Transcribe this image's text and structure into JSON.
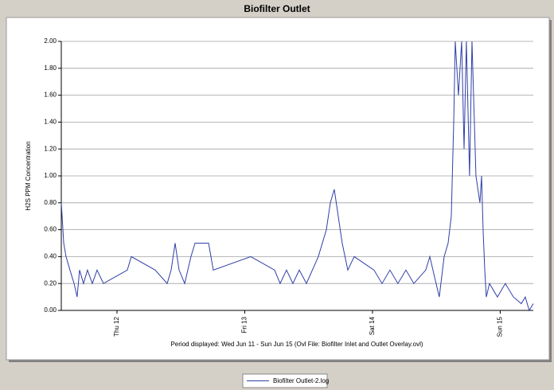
{
  "chart_data": {
    "type": "line",
    "title": "Biofilter Outlet",
    "y_label": "H2S PPM Concentration",
    "x_label": "Period displayed: Wed Jun 11 - Sun Jun 15 (Ovl File: Biofilter Inlet and Outlet Overlay.ovl)",
    "x": [
      11.564,
      11.583,
      11.601,
      11.632,
      11.664,
      11.688,
      11.707,
      11.738,
      11.769,
      11.807,
      11.844,
      11.894,
      12.081,
      12.112,
      12.299,
      12.393,
      12.424,
      12.455,
      12.486,
      12.53,
      12.579,
      12.611,
      12.717,
      12.754,
      13.047,
      13.234,
      13.277,
      13.327,
      13.377,
      13.427,
      13.483,
      13.576,
      13.639,
      13.67,
      13.701,
      13.732,
      13.763,
      13.807,
      13.857,
      14.012,
      14.075,
      14.137,
      14.199,
      14.262,
      14.324,
      14.417,
      14.449,
      14.498,
      14.523,
      14.561,
      14.592,
      14.617,
      14.636,
      14.648,
      14.673,
      14.698,
      14.717,
      14.735,
      14.76,
      14.779,
      14.81,
      14.841,
      14.854,
      14.866,
      14.879,
      14.891,
      14.916,
      14.978,
      15.04,
      15.103,
      15.165,
      15.196,
      15.227,
      15.259
    ],
    "series": [
      {
        "name": "Biofilter Outlet-2.log",
        "color": "#2f3fa8",
        "values": [
          0.8,
          0.5,
          0.4,
          0.3,
          0.2,
          0.1,
          0.3,
          0.2,
          0.3,
          0.2,
          0.3,
          0.2,
          0.3,
          0.4,
          0.3,
          0.2,
          0.3,
          0.5,
          0.3,
          0.2,
          0.4,
          0.5,
          0.5,
          0.3,
          0.4,
          0.3,
          0.2,
          0.3,
          0.2,
          0.3,
          0.2,
          0.4,
          0.6,
          0.8,
          0.9,
          0.7,
          0.5,
          0.3,
          0.4,
          0.3,
          0.2,
          0.3,
          0.2,
          0.3,
          0.2,
          0.3,
          0.4,
          0.2,
          0.1,
          0.4,
          0.5,
          0.7,
          1.4,
          2.0,
          1.6,
          2.0,
          1.2,
          2.0,
          1.0,
          2.0,
          1.0,
          0.8,
          1.0,
          0.6,
          0.3,
          0.1,
          0.2,
          0.1,
          0.2,
          0.1,
          0.05,
          0.1,
          0,
          0.05
        ]
      }
    ],
    "xlim": [
      11.564,
      15.259
    ],
    "xticks": [
      {
        "value": 12,
        "label": "Thu 12"
      },
      {
        "value": 13,
        "label": "Fri 13"
      },
      {
        "value": 14,
        "label": "Sat 14"
      },
      {
        "value": 15,
        "label": "Sun 15"
      }
    ],
    "ylim": [
      0,
      2
    ],
    "yticks": [
      {
        "value": 0,
        "label": "0.00"
      },
      {
        "value": 0.2,
        "label": "0.20"
      },
      {
        "value": 0.4,
        "label": "0.40"
      },
      {
        "value": 0.6,
        "label": "0.60"
      },
      {
        "value": 0.8,
        "label": "0.80"
      },
      {
        "value": 1,
        "label": "1.00"
      },
      {
        "value": 1.2,
        "label": "1.20"
      },
      {
        "value": 1.4,
        "label": "1.40"
      },
      {
        "value": 1.6,
        "label": "1.60"
      },
      {
        "value": 1.8,
        "label": "1.80"
      },
      {
        "value": 2,
        "label": "2.00"
      }
    ],
    "grid": true
  }
}
